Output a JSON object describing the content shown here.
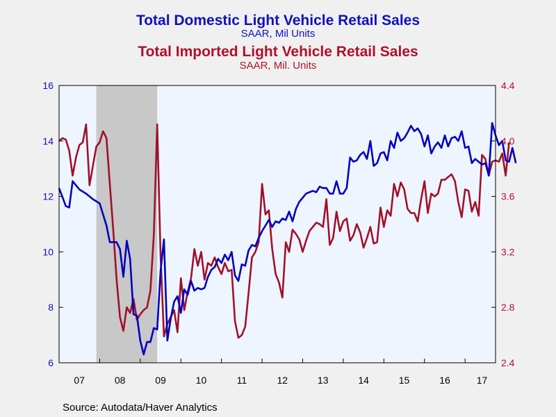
{
  "titles": {
    "left_title": "Total Domestic Light Vehicle Retail Sales",
    "left_subtitle": "SAAR, Mil Units",
    "right_title": "Total Imported Light Vehicle Retail Sales",
    "right_subtitle": "SAAR, Mil. Units"
  },
  "source": "Source:  Autodata/Haver Analytics",
  "colors": {
    "domestic": "#0000c0",
    "imported": "#a0102a",
    "plot_bg": "#eef5ff",
    "recession": "#c8c8c8"
  },
  "chart_data": {
    "type": "line",
    "title": "Total Domestic Light Vehicle Retail Sales / Total Imported Light Vehicle Retail Sales",
    "x_ticks": [
      "07",
      "08",
      "09",
      "10",
      "11",
      "12",
      "13",
      "14",
      "15",
      "16",
      "17"
    ],
    "x_range": [
      "2007-01",
      "2017-10"
    ],
    "y_left": {
      "label": "SAAR, Mil Units",
      "lim": [
        6,
        16
      ],
      "ticks": [
        6,
        8,
        10,
        12,
        14,
        16
      ]
    },
    "y_right": {
      "label": "SAAR, Mil. Units",
      "lim": [
        2.4,
        4.4
      ],
      "ticks": [
        "2.4",
        "2.8",
        "3.2",
        "3.6",
        "4.0",
        "4.4"
      ]
    },
    "recession_shading": {
      "start": "2007-12",
      "end": "2009-06"
    },
    "grid": false,
    "series": [
      {
        "name": "Total Domestic Light Vehicle Retail Sales",
        "axis": "left",
        "points": [
          [
            "2007-01",
            12.3
          ],
          [
            "2007-03",
            11.65
          ],
          [
            "2007-04",
            11.6
          ],
          [
            "2007-05",
            12.55
          ],
          [
            "2007-07",
            12.25
          ],
          [
            "2007-09",
            12.1
          ],
          [
            "2007-11",
            11.9
          ],
          [
            "2008-01",
            11.75
          ],
          [
            "2008-03",
            10.95
          ],
          [
            "2008-04",
            10.35
          ],
          [
            "2008-06",
            10.35
          ],
          [
            "2008-07",
            10.1
          ],
          [
            "2008-08",
            9.1
          ],
          [
            "2008-09",
            10.4
          ],
          [
            "2008-10",
            9.75
          ],
          [
            "2008-11",
            7.75
          ],
          [
            "2008-12",
            7.7
          ],
          [
            "2009-01",
            6.8
          ],
          [
            "2009-02",
            6.3
          ],
          [
            "2009-03",
            6.75
          ],
          [
            "2009-04",
            6.75
          ],
          [
            "2009-05",
            7.25
          ],
          [
            "2009-06",
            7.2
          ],
          [
            "2009-07",
            9.3
          ],
          [
            "2009-08",
            10.45
          ],
          [
            "2009-09",
            6.8
          ],
          [
            "2009-10",
            7.6
          ],
          [
            "2009-11",
            8.2
          ],
          [
            "2009-12",
            8.4
          ],
          [
            "2010-01",
            7.8
          ],
          [
            "2010-02",
            8.65
          ],
          [
            "2010-03",
            8.45
          ],
          [
            "2010-04",
            8.95
          ],
          [
            "2010-05",
            8.6
          ],
          [
            "2010-06",
            8.7
          ],
          [
            "2010-07",
            8.65
          ],
          [
            "2010-08",
            8.7
          ],
          [
            "2010-09",
            9.1
          ],
          [
            "2010-10",
            9.35
          ],
          [
            "2010-11",
            9.45
          ],
          [
            "2010-12",
            9.75
          ],
          [
            "2011-01",
            9.6
          ],
          [
            "2011-02",
            9.9
          ],
          [
            "2011-03",
            9.7
          ],
          [
            "2011-04",
            10.0
          ],
          [
            "2011-05",
            9.15
          ],
          [
            "2011-06",
            8.95
          ],
          [
            "2011-07",
            9.55
          ],
          [
            "2011-08",
            9.5
          ],
          [
            "2011-09",
            10.05
          ],
          [
            "2011-10",
            10.25
          ],
          [
            "2011-11",
            10.2
          ],
          [
            "2011-12",
            10.5
          ],
          [
            "2012-01",
            10.75
          ],
          [
            "2012-02",
            10.95
          ],
          [
            "2012-03",
            11.15
          ],
          [
            "2012-04",
            10.9
          ],
          [
            "2012-05",
            11.1
          ],
          [
            "2012-06",
            11.05
          ],
          [
            "2012-07",
            11.2
          ],
          [
            "2012-08",
            11.15
          ],
          [
            "2012-09",
            11.45
          ],
          [
            "2012-10",
            11.1
          ],
          [
            "2012-11",
            11.55
          ],
          [
            "2012-12",
            11.8
          ],
          [
            "2013-01",
            11.95
          ],
          [
            "2013-02",
            12.1
          ],
          [
            "2013-03",
            12.15
          ],
          [
            "2013-04",
            12.2
          ],
          [
            "2013-05",
            12.15
          ],
          [
            "2013-06",
            12.35
          ],
          [
            "2013-07",
            12.3
          ],
          [
            "2013-08",
            12.3
          ],
          [
            "2013-09",
            12.1
          ],
          [
            "2013-10",
            12.1
          ],
          [
            "2013-11",
            12.55
          ],
          [
            "2013-12",
            12.1
          ],
          [
            "2014-01",
            12.1
          ],
          [
            "2014-02",
            12.3
          ],
          [
            "2014-03",
            13.4
          ],
          [
            "2014-04",
            13.25
          ],
          [
            "2014-05",
            13.3
          ],
          [
            "2014-06",
            13.5
          ],
          [
            "2014-07",
            13.6
          ],
          [
            "2014-08",
            13.35
          ],
          [
            "2014-09",
            14.0
          ],
          [
            "2014-10",
            13.1
          ],
          [
            "2014-11",
            13.2
          ],
          [
            "2014-12",
            13.55
          ],
          [
            "2015-01",
            13.6
          ],
          [
            "2015-02",
            13.3
          ],
          [
            "2015-03",
            14.0
          ],
          [
            "2015-04",
            13.75
          ],
          [
            "2015-05",
            14.3
          ],
          [
            "2015-06",
            14.0
          ],
          [
            "2015-07",
            14.1
          ],
          [
            "2015-08",
            14.3
          ],
          [
            "2015-09",
            14.55
          ],
          [
            "2015-10",
            14.35
          ],
          [
            "2015-11",
            14.45
          ],
          [
            "2015-12",
            14.25
          ],
          [
            "2016-01",
            13.8
          ],
          [
            "2016-02",
            14.2
          ],
          [
            "2016-03",
            13.55
          ],
          [
            "2016-04",
            13.8
          ],
          [
            "2016-05",
            13.95
          ],
          [
            "2016-06",
            13.75
          ],
          [
            "2016-07",
            14.2
          ],
          [
            "2016-08",
            13.8
          ],
          [
            "2016-09",
            14.1
          ],
          [
            "2016-10",
            14.15
          ],
          [
            "2016-11",
            14.0
          ],
          [
            "2016-12",
            14.35
          ],
          [
            "2017-01",
            13.75
          ],
          [
            "2017-02",
            13.8
          ],
          [
            "2017-03",
            13.2
          ],
          [
            "2017-04",
            13.35
          ],
          [
            "2017-05",
            13.25
          ],
          [
            "2017-06",
            13.15
          ],
          [
            "2017-07",
            13.2
          ],
          [
            "2017-08",
            12.75
          ],
          [
            "2017-09",
            14.65
          ],
          [
            "2017-10",
            14.2
          ],
          [
            "2017-11",
            13.85
          ],
          [
            "2017-12",
            14.0
          ],
          [
            "2018-01",
            13.3
          ],
          [
            "2018-02",
            13.25
          ],
          [
            "2018-03",
            13.75
          ],
          [
            "2018-04",
            13.2
          ]
        ]
      },
      {
        "name": "Total Imported Light Vehicle Retail Sales",
        "axis": "right",
        "points": [
          [
            "2007-01",
            4.0
          ],
          [
            "2007-02",
            4.02
          ],
          [
            "2007-03",
            4.01
          ],
          [
            "2007-04",
            3.93
          ],
          [
            "2007-05",
            3.75
          ],
          [
            "2007-06",
            3.88
          ],
          [
            "2007-07",
            3.97
          ],
          [
            "2007-08",
            3.99
          ],
          [
            "2007-09",
            4.12
          ],
          [
            "2007-10",
            3.68
          ],
          [
            "2007-11",
            3.82
          ],
          [
            "2007-12",
            3.96
          ],
          [
            "2008-01",
            3.99
          ],
          [
            "2008-02",
            4.07
          ],
          [
            "2008-03",
            4.02
          ],
          [
            "2008-04",
            3.69
          ],
          [
            "2008-05",
            3.36
          ],
          [
            "2008-06",
            3.0
          ],
          [
            "2008-07",
            2.73
          ],
          [
            "2008-08",
            2.63
          ],
          [
            "2008-09",
            2.8
          ],
          [
            "2008-10",
            2.76
          ],
          [
            "2008-11",
            2.86
          ],
          [
            "2008-12",
            2.71
          ],
          [
            "2009-01",
            2.75
          ],
          [
            "2009-02",
            2.78
          ],
          [
            "2009-03",
            2.8
          ],
          [
            "2009-04",
            2.92
          ],
          [
            "2009-05",
            3.32
          ],
          [
            "2009-06",
            4.12
          ],
          [
            "2009-07",
            3.18
          ],
          [
            "2009-08",
            2.59
          ],
          [
            "2009-09",
            2.68
          ],
          [
            "2009-10",
            2.73
          ],
          [
            "2009-11",
            2.78
          ],
          [
            "2009-12",
            2.62
          ],
          [
            "2010-01",
            3.01
          ],
          [
            "2010-02",
            2.78
          ],
          [
            "2010-03",
            2.91
          ],
          [
            "2010-04",
            3.01
          ],
          [
            "2010-05",
            3.22
          ],
          [
            "2010-06",
            3.1
          ],
          [
            "2010-07",
            3.2
          ],
          [
            "2010-08",
            3.0
          ],
          [
            "2010-09",
            3.12
          ],
          [
            "2010-10",
            3.1
          ],
          [
            "2010-11",
            3.16
          ],
          [
            "2010-12",
            3.09
          ],
          [
            "2011-01",
            3.04
          ],
          [
            "2011-02",
            3.12
          ],
          [
            "2011-03",
            3.06
          ],
          [
            "2011-04",
            3.07
          ],
          [
            "2011-05",
            2.7
          ],
          [
            "2011-06",
            2.58
          ],
          [
            "2011-07",
            2.6
          ],
          [
            "2011-08",
            2.66
          ],
          [
            "2011-09",
            2.9
          ],
          [
            "2011-10",
            3.16
          ],
          [
            "2011-11",
            3.2
          ],
          [
            "2011-12",
            3.27
          ],
          [
            "2012-01",
            3.69
          ],
          [
            "2012-02",
            3.47
          ],
          [
            "2012-03",
            3.5
          ],
          [
            "2012-04",
            3.22
          ],
          [
            "2012-05",
            3.04
          ],
          [
            "2012-06",
            2.98
          ],
          [
            "2012-07",
            2.87
          ],
          [
            "2012-08",
            3.27
          ],
          [
            "2012-09",
            3.2
          ],
          [
            "2012-10",
            3.36
          ],
          [
            "2012-11",
            3.33
          ],
          [
            "2012-12",
            3.29
          ],
          [
            "2013-01",
            3.2
          ],
          [
            "2013-02",
            3.28
          ],
          [
            "2013-03",
            3.35
          ],
          [
            "2013-04",
            3.38
          ],
          [
            "2013-05",
            3.41
          ],
          [
            "2013-06",
            3.4
          ],
          [
            "2013-07",
            3.38
          ],
          [
            "2013-08",
            3.58
          ],
          [
            "2013-09",
            3.25
          ],
          [
            "2013-10",
            3.3
          ],
          [
            "2013-11",
            3.49
          ],
          [
            "2013-12",
            3.35
          ],
          [
            "2014-01",
            3.42
          ],
          [
            "2014-02",
            3.44
          ],
          [
            "2014-03",
            3.28
          ],
          [
            "2014-04",
            3.32
          ],
          [
            "2014-05",
            3.4
          ],
          [
            "2014-06",
            3.34
          ],
          [
            "2014-07",
            3.23
          ],
          [
            "2014-08",
            3.3
          ],
          [
            "2014-09",
            3.38
          ],
          [
            "2014-10",
            3.26
          ],
          [
            "2014-11",
            3.27
          ],
          [
            "2014-12",
            3.52
          ],
          [
            "2015-01",
            3.38
          ],
          [
            "2015-02",
            3.5
          ],
          [
            "2015-03",
            3.46
          ],
          [
            "2015-04",
            3.69
          ],
          [
            "2015-05",
            3.6
          ],
          [
            "2015-06",
            3.7
          ],
          [
            "2015-07",
            3.65
          ],
          [
            "2015-08",
            3.51
          ],
          [
            "2015-09",
            3.48
          ],
          [
            "2015-10",
            3.48
          ],
          [
            "2015-11",
            3.42
          ],
          [
            "2015-12",
            3.58
          ],
          [
            "2016-01",
            3.71
          ],
          [
            "2016-02",
            3.48
          ],
          [
            "2016-03",
            3.62
          ],
          [
            "2016-04",
            3.6
          ],
          [
            "2016-05",
            3.62
          ],
          [
            "2016-06",
            3.72
          ],
          [
            "2016-07",
            3.72
          ],
          [
            "2016-08",
            3.74
          ],
          [
            "2016-09",
            3.76
          ],
          [
            "2016-10",
            3.71
          ],
          [
            "2016-11",
            3.56
          ],
          [
            "2016-12",
            3.45
          ],
          [
            "2017-01",
            3.65
          ],
          [
            "2017-02",
            3.64
          ],
          [
            "2017-03",
            3.49
          ],
          [
            "2017-04",
            3.56
          ],
          [
            "2017-05",
            3.46
          ],
          [
            "2017-06",
            3.9
          ],
          [
            "2017-07",
            3.87
          ],
          [
            "2017-08",
            3.75
          ],
          [
            "2017-09",
            3.85
          ],
          [
            "2017-10",
            3.86
          ],
          [
            "2017-11",
            3.85
          ],
          [
            "2017-12",
            3.91
          ],
          [
            "2018-01",
            3.75
          ],
          [
            "2018-02",
            3.99
          ]
        ]
      }
    ]
  }
}
